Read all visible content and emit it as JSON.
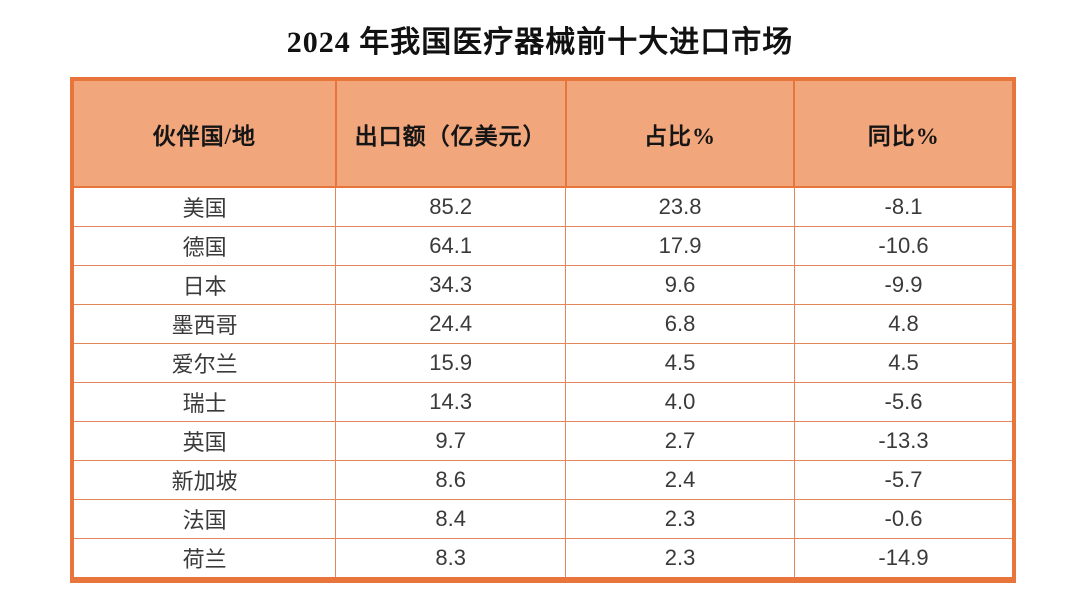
{
  "chart_data": {
    "type": "table",
    "title": "2024 年我国医疗器械前十大进口市场",
    "columns": [
      "伙伴国/地",
      "出口额（亿美元）",
      "占比%",
      "同比%"
    ],
    "rows": [
      [
        "美国",
        "85.2",
        "23.8",
        "-8.1"
      ],
      [
        "德国",
        "64.1",
        "17.9",
        "-10.6"
      ],
      [
        "日本",
        "34.3",
        "9.6",
        "-9.9"
      ],
      [
        "墨西哥",
        "24.4",
        "6.8",
        "4.8"
      ],
      [
        "爱尔兰",
        "15.9",
        "4.5",
        "4.5"
      ],
      [
        "瑞士",
        "14.3",
        "4.0",
        "-5.6"
      ],
      [
        "英国",
        "9.7",
        "2.7",
        "-13.3"
      ],
      [
        "新加坡",
        "8.6",
        "2.4",
        "-5.7"
      ],
      [
        "法国",
        "8.4",
        "2.3",
        "-0.6"
      ],
      [
        "荷兰",
        "8.3",
        "2.3",
        "-14.9"
      ]
    ]
  },
  "colors": {
    "header_bg": "#F2A67C",
    "outer_border": "#E8763C",
    "grid_line": "#E28759",
    "header_text": "#151515",
    "body_text": "#3A3A3A",
    "title_text": "#111111"
  }
}
